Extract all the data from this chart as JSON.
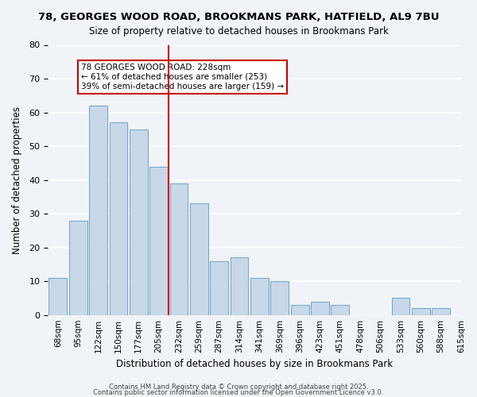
{
  "title": "78, GEORGES WOOD ROAD, BROOKMANS PARK, HATFIELD, AL9 7BU",
  "subtitle": "Size of property relative to detached houses in Brookmans Park",
  "xlabel": "Distribution of detached houses by size in Brookmans Park",
  "ylabel": "Number of detached properties",
  "bar_color": "#c8d8e8",
  "bar_edge_color": "#7aaacc",
  "background_color": "#f0f4f8",
  "grid_color": "white",
  "bins": [
    "68sqm",
    "95sqm",
    "122sqm",
    "150sqm",
    "177sqm",
    "205sqm",
    "232sqm",
    "259sqm",
    "287sqm",
    "314sqm",
    "341sqm",
    "369sqm",
    "396sqm",
    "423sqm",
    "451sqm",
    "478sqm",
    "506sqm",
    "533sqm",
    "560sqm",
    "588sqm",
    "615sqm"
  ],
  "values": [
    11,
    28,
    62,
    57,
    55,
    44,
    39,
    33,
    16,
    17,
    11,
    10,
    3,
    4,
    3,
    0,
    0,
    5,
    2,
    2
  ],
  "vline_x": 6,
  "vline_color": "#cc0000",
  "annotation_title": "78 GEORGES WOOD ROAD: 228sqm",
  "annotation_line1": "← 61% of detached houses are smaller (253)",
  "annotation_line2": "39% of semi-detached houses are larger (159) →",
  "annotation_box_color": "white",
  "annotation_box_edge": "#cc0000",
  "ylim": [
    0,
    80
  ],
  "yticks": [
    0,
    10,
    20,
    30,
    40,
    50,
    60,
    70,
    80
  ],
  "footnote1": "Contains HM Land Registry data © Crown copyright and database right 2025.",
  "footnote2": "Contains public sector information licensed under the Open Government Licence v3.0."
}
